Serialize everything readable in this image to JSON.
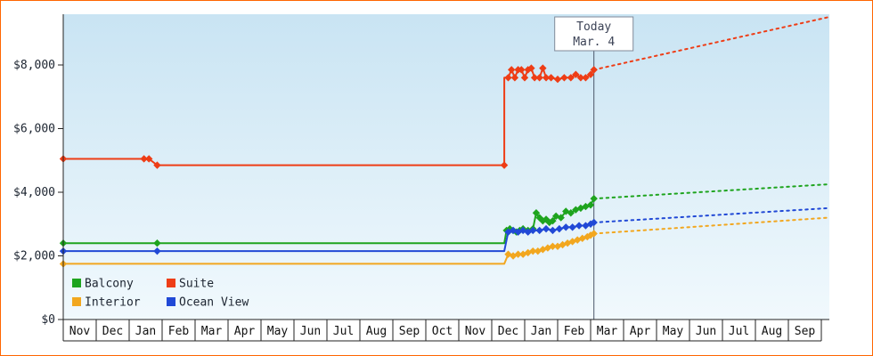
{
  "chart": {
    "border_color": "#ff6600",
    "plot_bg_top": "#c9e4f3",
    "plot_bg_bottom": "#f1f9fd",
    "axis_color": "#222222",
    "month_label_color": "#111111",
    "y_label_color": "#1c2430",
    "today_line_color": "#4a5568",
    "today_box_border": "#808a99",
    "today_text_color": "#3c4356",
    "legend_text_color": "#1c2430"
  },
  "chart_data": {
    "type": "line",
    "title": "",
    "description": "Cruise cabin price history by category with dotted future price projections",
    "x_axis": {
      "unit": "month",
      "labels": [
        "Nov",
        "Dec",
        "Jan",
        "Feb",
        "Mar",
        "Apr",
        "May",
        "Jun",
        "Jul",
        "Aug",
        "Sep",
        "Oct",
        "Nov",
        "Dec",
        "Jan",
        "Feb",
        "Mar",
        "Apr",
        "May",
        "Jun",
        "Jul",
        "Aug",
        "Sep"
      ]
    },
    "y_axis": {
      "min": 0,
      "max": 9600,
      "ticks": [
        {
          "value": 0,
          "label": "$0"
        },
        {
          "value": 2000,
          "label": "$2,000"
        },
        {
          "value": 4000,
          "label": "$4,000"
        },
        {
          "value": 6000,
          "label": "$6,000"
        },
        {
          "value": 8000,
          "label": "$8,000"
        }
      ]
    },
    "today": {
      "label": "Today",
      "date": "Mar. 4",
      "x": 16.1
    },
    "legend_position": "bottom-left",
    "series": [
      {
        "name": "Balcony",
        "color": "#1ea41e",
        "points": [
          [
            0,
            2400,
            1
          ],
          [
            2.85,
            2400,
            1
          ],
          [
            13.38,
            2400,
            0
          ],
          [
            13.45,
            2800,
            1
          ],
          [
            13.55,
            2850,
            1
          ],
          [
            13.65,
            2800,
            1
          ],
          [
            13.75,
            2750,
            1
          ],
          [
            13.85,
            2800,
            1
          ],
          [
            13.95,
            2850,
            1
          ],
          [
            14.1,
            2800,
            1
          ],
          [
            14.25,
            2850,
            1
          ],
          [
            14.35,
            3350,
            1
          ],
          [
            14.45,
            3200,
            1
          ],
          [
            14.55,
            3100,
            1
          ],
          [
            14.65,
            3150,
            1
          ],
          [
            14.75,
            3050,
            1
          ],
          [
            14.85,
            3100,
            1
          ],
          [
            14.95,
            3250,
            1
          ],
          [
            15.1,
            3200,
            1
          ],
          [
            15.25,
            3400,
            1
          ],
          [
            15.4,
            3350,
            1
          ],
          [
            15.55,
            3450,
            1
          ],
          [
            15.7,
            3500,
            1
          ],
          [
            15.85,
            3550,
            1
          ],
          [
            16.0,
            3600,
            1
          ],
          [
            16.1,
            3800,
            1
          ]
        ],
        "projection": [
          [
            16.1,
            3800
          ],
          [
            23.2,
            4250
          ]
        ]
      },
      {
        "name": "Suite",
        "color": "#ee3d16",
        "points": [
          [
            0,
            5050,
            1
          ],
          [
            2.45,
            5050,
            1
          ],
          [
            2.6,
            5050,
            1
          ],
          [
            2.85,
            4850,
            1
          ],
          [
            3.0,
            4850,
            0
          ],
          [
            13.38,
            4850,
            1
          ],
          [
            13.38,
            7600,
            0
          ],
          [
            13.5,
            7600,
            1
          ],
          [
            13.6,
            7850,
            1
          ],
          [
            13.7,
            7600,
            1
          ],
          [
            13.8,
            7850,
            1
          ],
          [
            13.9,
            7850,
            1
          ],
          [
            14.0,
            7600,
            1
          ],
          [
            14.1,
            7850,
            1
          ],
          [
            14.2,
            7900,
            1
          ],
          [
            14.3,
            7600,
            1
          ],
          [
            14.45,
            7600,
            1
          ],
          [
            14.55,
            7900,
            1
          ],
          [
            14.65,
            7600,
            1
          ],
          [
            14.8,
            7600,
            1
          ],
          [
            15.0,
            7550,
            1
          ],
          [
            15.2,
            7600,
            1
          ],
          [
            15.4,
            7600,
            1
          ],
          [
            15.55,
            7700,
            1
          ],
          [
            15.7,
            7600,
            1
          ],
          [
            15.85,
            7600,
            1
          ],
          [
            16.0,
            7700,
            1
          ],
          [
            16.1,
            7850,
            1
          ]
        ],
        "projection": [
          [
            16.1,
            7850
          ],
          [
            23.2,
            9500
          ]
        ]
      },
      {
        "name": "Interior",
        "color": "#f2a71f",
        "points": [
          [
            0,
            1750,
            1
          ],
          [
            13.38,
            1750,
            0
          ],
          [
            13.5,
            2050,
            1
          ],
          [
            13.65,
            2000,
            1
          ],
          [
            13.8,
            2050,
            1
          ],
          [
            13.95,
            2050,
            1
          ],
          [
            14.1,
            2100,
            1
          ],
          [
            14.25,
            2150,
            1
          ],
          [
            14.4,
            2150,
            1
          ],
          [
            14.55,
            2200,
            1
          ],
          [
            14.7,
            2250,
            1
          ],
          [
            14.85,
            2300,
            1
          ],
          [
            15.0,
            2300,
            1
          ],
          [
            15.15,
            2350,
            1
          ],
          [
            15.3,
            2400,
            1
          ],
          [
            15.45,
            2450,
            1
          ],
          [
            15.6,
            2500,
            1
          ],
          [
            15.75,
            2550,
            1
          ],
          [
            15.9,
            2600,
            1
          ],
          [
            16.0,
            2650,
            1
          ],
          [
            16.1,
            2700,
            1
          ]
        ],
        "projection": [
          [
            16.1,
            2700
          ],
          [
            23.2,
            3200
          ]
        ]
      },
      {
        "name": "Ocean View",
        "color": "#2149d6",
        "points": [
          [
            0,
            2150,
            1
          ],
          [
            2.85,
            2150,
            1
          ],
          [
            13.38,
            2150,
            0
          ],
          [
            13.5,
            2750,
            1
          ],
          [
            13.65,
            2800,
            1
          ],
          [
            13.8,
            2750,
            1
          ],
          [
            13.95,
            2800,
            1
          ],
          [
            14.1,
            2750,
            1
          ],
          [
            14.25,
            2800,
            1
          ],
          [
            14.45,
            2800,
            1
          ],
          [
            14.65,
            2850,
            1
          ],
          [
            14.85,
            2800,
            1
          ],
          [
            15.05,
            2850,
            1
          ],
          [
            15.25,
            2900,
            1
          ],
          [
            15.45,
            2900,
            1
          ],
          [
            15.65,
            2950,
            1
          ],
          [
            15.85,
            2950,
            1
          ],
          [
            16.0,
            3000,
            1
          ],
          [
            16.1,
            3050,
            1
          ]
        ],
        "projection": [
          [
            16.1,
            3050
          ],
          [
            23.2,
            3500
          ]
        ]
      }
    ]
  }
}
